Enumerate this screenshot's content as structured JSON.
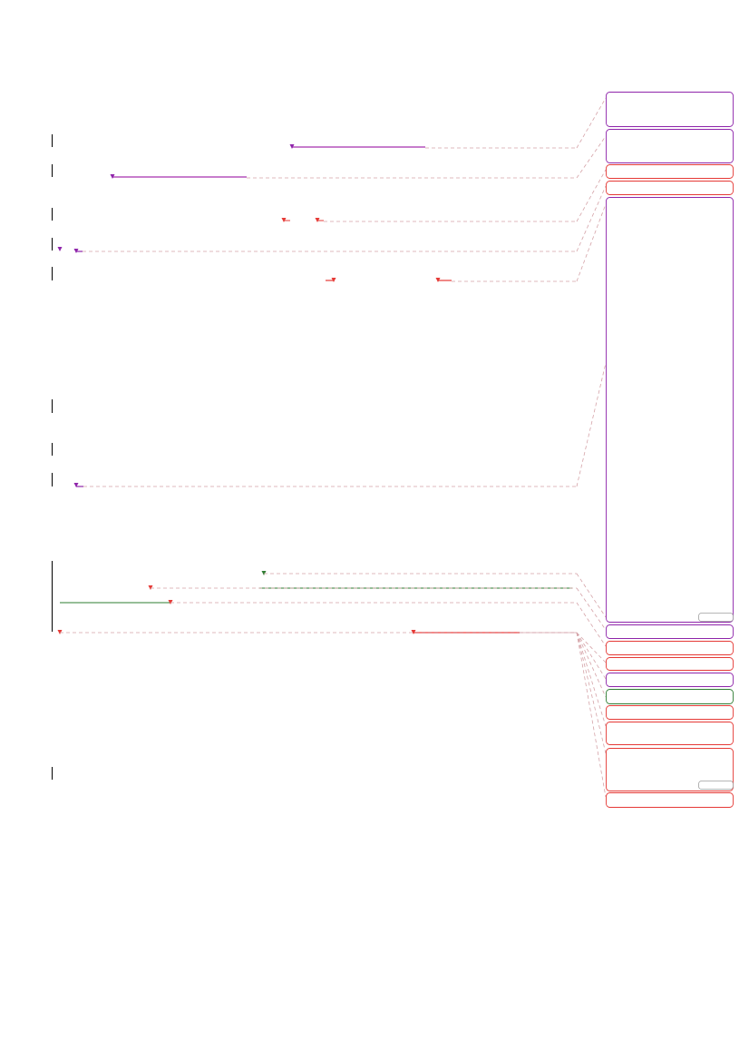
{
  "document": {
    "page_text": "",
    "annotation_colors": {
      "purple": "#8e24aa",
      "red": "#e53935",
      "green": "#2e7d32",
      "highlight_purple": "#c77dcc",
      "highlight_pink": "#f48a8a",
      "connector": "#d5a3a8",
      "change_bar": "#000000",
      "box_border_purple": "#9c27b0",
      "box_border_red": "#e53935",
      "box_border_green": "#2e7d32",
      "box_border_gray": "#9e9e9e"
    },
    "comment_boxes": [
      {
        "color": "purple",
        "text": ""
      },
      {
        "color": "purple",
        "text": ""
      },
      {
        "color": "red",
        "text": ""
      },
      {
        "color": "red",
        "text": ""
      },
      {
        "color": "purple",
        "text": ""
      },
      {
        "color": "purple",
        "text": ""
      },
      {
        "color": "red",
        "text": ""
      },
      {
        "color": "red",
        "text": ""
      },
      {
        "color": "purple",
        "text": ""
      },
      {
        "color": "green",
        "text": ""
      },
      {
        "color": "red",
        "text": ""
      },
      {
        "color": "red",
        "text": ""
      },
      {
        "color": "red",
        "text": ""
      },
      {
        "color": "red",
        "text": ""
      }
    ]
  }
}
